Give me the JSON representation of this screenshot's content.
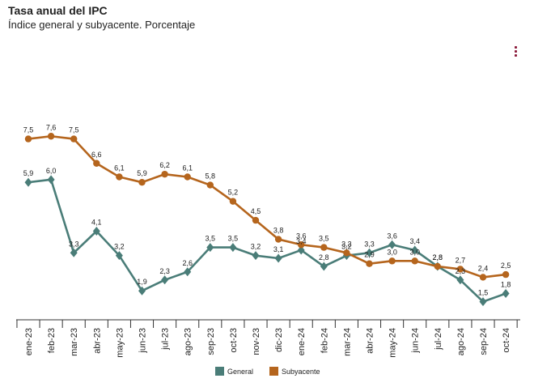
{
  "header": {
    "title": "Tasa anual del IPC",
    "subtitle": "Índice general y subyacente. Porcentaje"
  },
  "chart_data": {
    "type": "line",
    "title": "Tasa anual del IPC",
    "subtitle": "Índice general y subyacente. Porcentaje",
    "xlabel": "",
    "ylabel": "",
    "ylim": [
      0.5,
      8.5
    ],
    "categories": [
      "ene-23",
      "feb-23",
      "mar-23",
      "abr-23",
      "may-23",
      "jun-23",
      "jul-23",
      "ago-23",
      "sep-23",
      "oct-23",
      "nov-23",
      "dic-23",
      "ene-24",
      "feb-24",
      "mar-24",
      "abr-24",
      "may-24",
      "jun-24",
      "jul-24",
      "ago-24",
      "sep-24",
      "oct-24"
    ],
    "series": [
      {
        "name": "General",
        "color": "#4a7d78",
        "marker": "diamond",
        "values": [
          5.9,
          6.0,
          3.3,
          4.1,
          3.2,
          1.9,
          2.3,
          2.6,
          3.5,
          3.5,
          3.2,
          3.1,
          3.4,
          2.8,
          3.2,
          3.3,
          3.6,
          3.4,
          2.8,
          2.3,
          1.5,
          1.8
        ],
        "labels": [
          "5,9",
          "6,0",
          "3,3",
          "4,1",
          "3,2",
          "1,9",
          "2,3",
          "2,6",
          "3,5",
          "3,5",
          "3,2",
          "3,1",
          "3,4",
          "2,8",
          "3,2",
          "3,3",
          "3,6",
          "3,4",
          "2,8",
          "2,3",
          "1,5",
          "1,8"
        ]
      },
      {
        "name": "Subyacente",
        "color": "#b5651d",
        "marker": "circle",
        "values": [
          7.5,
          7.6,
          7.5,
          6.6,
          6.1,
          5.9,
          6.2,
          6.1,
          5.8,
          5.2,
          4.5,
          3.8,
          3.6,
          3.5,
          3.3,
          2.9,
          3.0,
          3.0,
          2.8,
          2.7,
          2.4,
          2.5
        ],
        "labels": [
          "7,5",
          "7,6",
          "7,5",
          "6,6",
          "6,1",
          "5,9",
          "6,2",
          "6,1",
          "5,8",
          "5,2",
          "4,5",
          "3,8",
          "3,6",
          "3,5",
          "3,3",
          "2,9",
          "3,0",
          "3,0",
          "2,8",
          "2,7",
          "2,4",
          "2,5"
        ]
      }
    ],
    "legend": "bottom-center",
    "grid": false
  }
}
